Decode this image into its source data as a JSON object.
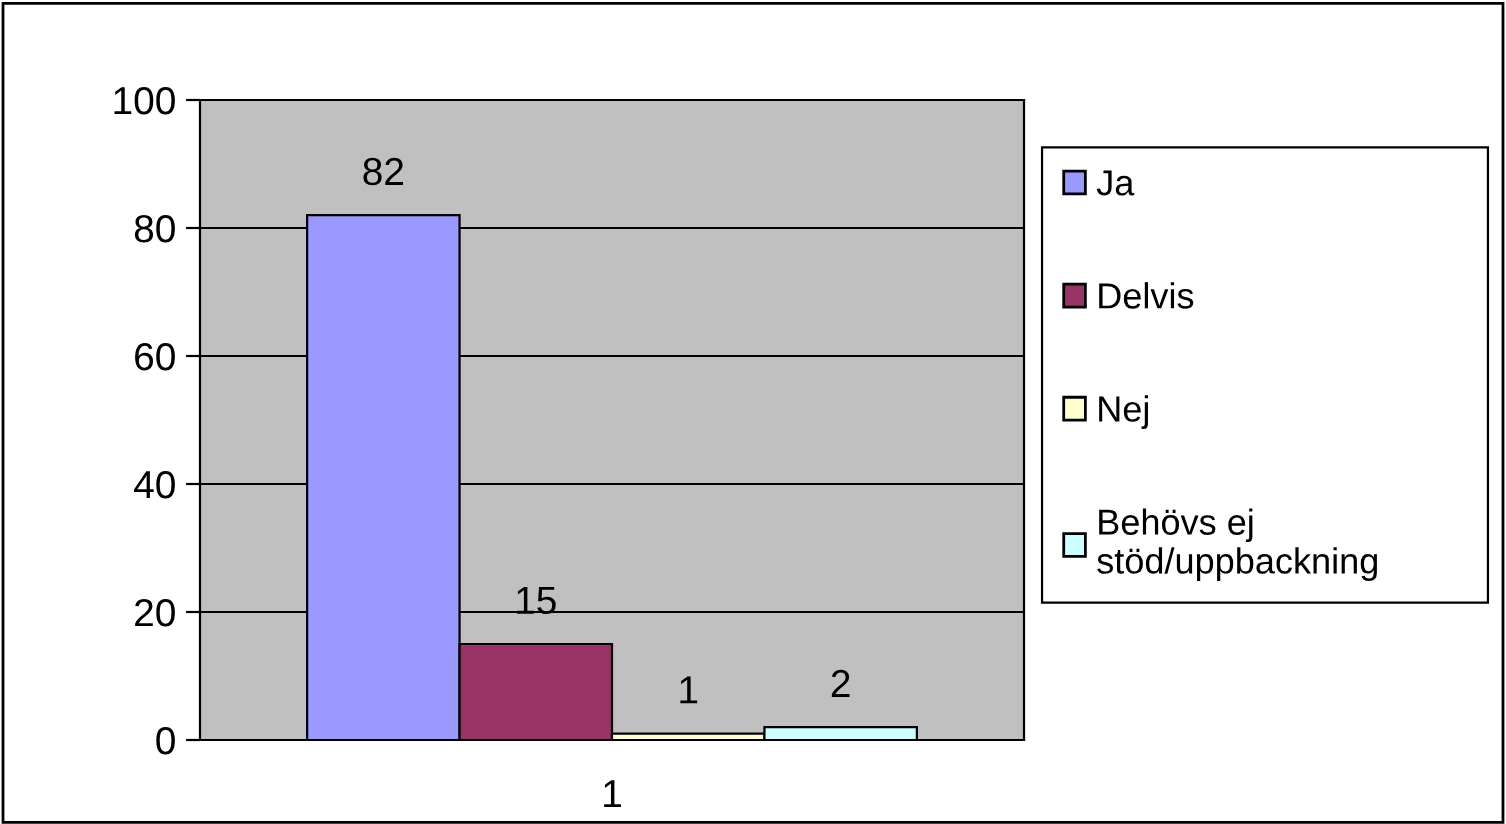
{
  "chart_data": {
    "type": "bar",
    "categories": [
      "1"
    ],
    "series": [
      {
        "name": "Ja",
        "color": "#9999ff",
        "values": [
          82
        ]
      },
      {
        "name": "Delvis",
        "color": "#993366",
        "values": [
          15
        ]
      },
      {
        "name": "Nej",
        "color": "#ffffcc",
        "values": [
          1
        ]
      },
      {
        "name": "Behövs ej\nstöd/uppbackning",
        "color": "#ccffff",
        "values": [
          2
        ]
      }
    ],
    "ylim": [
      0,
      100
    ],
    "yticks": [
      0,
      20,
      40,
      60,
      80,
      100
    ],
    "grid": "y",
    "legend": "right",
    "data_labels": true
  }
}
